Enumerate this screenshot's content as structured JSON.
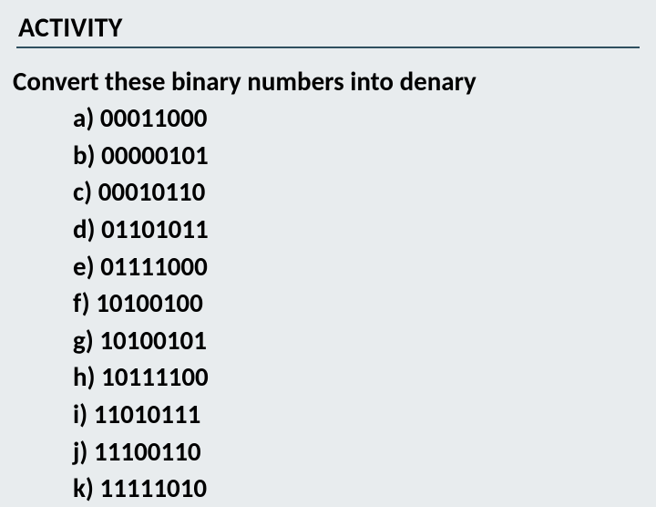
{
  "heading": "ACTIVITY",
  "instruction": "Convert these binary numbers into denary",
  "items": [
    {
      "label": "a)",
      "value": "00011000"
    },
    {
      "label": "b)",
      "value": "00000101"
    },
    {
      "label": "c)",
      "value": "00010110"
    },
    {
      "label": "d)",
      "value": "01101011"
    },
    {
      "label": "e)",
      "value": "01111000"
    },
    {
      "label": "f)",
      "value": "10100100"
    },
    {
      "label": "g)",
      "value": "10100101"
    },
    {
      "label": "h)",
      "value": "10111100"
    },
    {
      "label": "i)",
      "value": "11010111"
    },
    {
      "label": "j)",
      "value": "11100110"
    },
    {
      "label": "k)",
      "value": "11111010"
    }
  ],
  "colors": {
    "background": "#e8ecee",
    "text": "#000000",
    "rule": "#2f4f5f"
  },
  "typography": {
    "font_family": "Calibri",
    "heading_fontsize_pt": 22,
    "body_fontsize_pt": 22,
    "weight": "bold"
  }
}
